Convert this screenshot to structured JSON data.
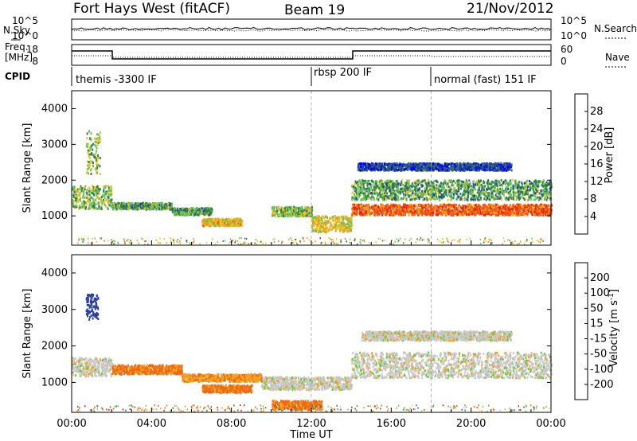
{
  "header": {
    "radar": "Fort Hays West (fitACF)",
    "beam": "Beam 19",
    "date": "21/Nov/2012"
  },
  "summary_panel": {
    "labels": {
      "nsky": "N.Sky",
      "nsearch": "N.Search",
      "freq_line1": "Freq.",
      "freq_line2": "[MHz]",
      "nave": "Nave",
      "cpid": "CPID"
    },
    "noise_axis_ticks_left": [
      "10^5",
      "10^0"
    ],
    "noise_axis_ticks_right": [
      "10^5",
      "10^0"
    ],
    "freq_axis_ticks": [
      "18",
      "8"
    ],
    "nave_axis_ticks": [
      "60",
      "0"
    ],
    "cpid_segments": [
      {
        "label": "themis -3300 IF",
        "start_hour": 0.0
      },
      {
        "label": "rbsp 200 IF",
        "start_hour": 12.0
      },
      {
        "label": "normal (fast) 151 IF",
        "start_hour": 18.0
      }
    ]
  },
  "x_axis": {
    "label": "Time UT",
    "ticks": [
      "00:00",
      "04:00",
      "08:00",
      "12:00",
      "16:00",
      "20:00",
      "00:00"
    ]
  },
  "colors": {
    "power_scale": [
      "#0000ff",
      "#2a3fa0",
      "#2e7d4a",
      "#6cc35a",
      "#f0c020",
      "#f39c1a",
      "#ee5a10",
      "#ee2010"
    ],
    "velocity_scale": [
      "#ee1a1a",
      "#ee6a10",
      "#f5a020",
      "#c8c8c8",
      "#c8c8c8",
      "#6cc83c",
      "#2a7d5a",
      "#2a3fa0",
      "#1a1ab0"
    ]
  },
  "chart_data": [
    {
      "type": "heatmap",
      "name": "Power panel",
      "ylabel": "Slant Range [km]",
      "xlim": [
        0,
        24
      ],
      "ylim": [
        180,
        4500
      ],
      "yticks": [
        "1000",
        "2000",
        "3000",
        "4000"
      ],
      "colorbar": {
        "label": "Power [dB]",
        "ticks": [
          "4",
          "8",
          "12",
          "16",
          "20",
          "24",
          "28"
        ]
      },
      "regions": [
        {
          "t0": 0.0,
          "t1": 2.0,
          "r": 1550,
          "w": 650,
          "level": 14
        },
        {
          "t0": 0.7,
          "t1": 1.4,
          "r": 2800,
          "w": 1200,
          "level": 14
        },
        {
          "t0": 2.0,
          "t1": 5.0,
          "r": 1300,
          "w": 180,
          "level": 12
        },
        {
          "t0": 5.0,
          "t1": 7.0,
          "r": 1150,
          "w": 200,
          "level": 12
        },
        {
          "t0": 6.5,
          "t1": 8.5,
          "r": 850,
          "w": 200,
          "level": 20
        },
        {
          "t0": 10.0,
          "t1": 12.0,
          "r": 1150,
          "w": 260,
          "level": 14
        },
        {
          "t0": 12.0,
          "t1": 14.0,
          "r": 800,
          "w": 450,
          "level": 18
        },
        {
          "t0": 14.0,
          "t1": 24.0,
          "r": 1200,
          "w": 300,
          "level": 26
        },
        {
          "t0": 14.0,
          "t1": 24.0,
          "r": 1750,
          "w": 550,
          "level": 12
        },
        {
          "t0": 14.3,
          "t1": 22.0,
          "r": 2400,
          "w": 200,
          "level": 6
        }
      ]
    },
    {
      "type": "heatmap",
      "name": "Velocity panel",
      "ylabel": "Slant Range [km]",
      "xlim": [
        0,
        24
      ],
      "ylim": [
        180,
        4500
      ],
      "yticks": [
        "1000",
        "2000",
        "3000",
        "4000"
      ],
      "colorbar": {
        "label": "Velocity [m s^-1]",
        "ticks": [
          "200",
          "100",
          "50",
          "15",
          "-15",
          "-50",
          "-100",
          "-200"
        ]
      },
      "regions": [
        {
          "t0": 0.0,
          "t1": 2.0,
          "r": 1450,
          "w": 500,
          "v": 0
        },
        {
          "t0": 0.7,
          "t1": 1.3,
          "r": 3100,
          "w": 700,
          "v": 180
        },
        {
          "t0": 2.0,
          "t1": 5.5,
          "r": 1380,
          "w": 250,
          "v": -60
        },
        {
          "t0": 5.5,
          "t1": 9.5,
          "r": 1150,
          "w": 200,
          "v": -40
        },
        {
          "t0": 6.5,
          "t1": 9.0,
          "r": 850,
          "w": 200,
          "v": -60
        },
        {
          "t0": 9.5,
          "t1": 14.0,
          "r": 1000,
          "w": 350,
          "v": 0
        },
        {
          "t0": 10.0,
          "t1": 12.5,
          "r": 400,
          "w": 250,
          "v": -60
        },
        {
          "t0": 14.0,
          "t1": 24.0,
          "r": 1500,
          "w": 700,
          "v": 0
        },
        {
          "t0": 14.5,
          "t1": 22.0,
          "r": 2300,
          "w": 250,
          "v": 0
        }
      ]
    }
  ]
}
